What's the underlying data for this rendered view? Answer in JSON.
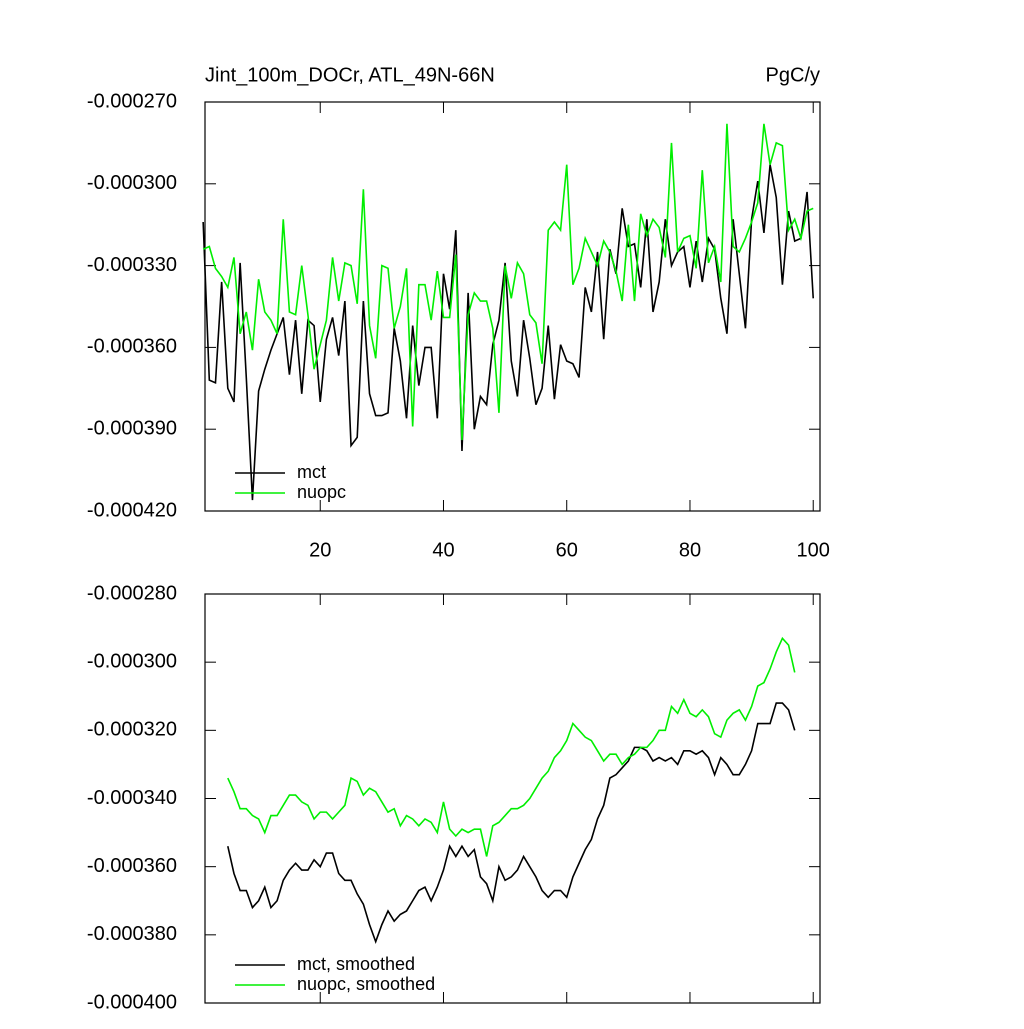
{
  "chart_data": [
    {
      "type": "line",
      "title": "Jint_100m_DOCr, ATL_49N-66N",
      "units": "PgC/y",
      "x": [
        1,
        2,
        3,
        4,
        5,
        6,
        7,
        8,
        9,
        10,
        11,
        12,
        13,
        14,
        15,
        16,
        17,
        18,
        19,
        20,
        21,
        22,
        23,
        24,
        25,
        26,
        27,
        28,
        29,
        30,
        31,
        32,
        33,
        34,
        35,
        36,
        37,
        38,
        39,
        40,
        41,
        42,
        43,
        44,
        45,
        46,
        47,
        48,
        49,
        50,
        51,
        52,
        53,
        54,
        55,
        56,
        57,
        58,
        59,
        60,
        61,
        62,
        63,
        64,
        65,
        66,
        67,
        68,
        69,
        70,
        71,
        72,
        73,
        74,
        75,
        76,
        77,
        78,
        79,
        80,
        81,
        82,
        83,
        84,
        85,
        86,
        87,
        88,
        89,
        90,
        91,
        92,
        93,
        94,
        95,
        96,
        97,
        98,
        99,
        100
      ],
      "xlim": [
        1.3,
        101.1
      ],
      "xticks": [
        20,
        40,
        60,
        80,
        100
      ],
      "ylim": [
        -0.00042,
        -0.00027
      ],
      "yticks": [
        {
          "value": -0.00042,
          "label": "-0.000420"
        },
        {
          "value": -0.00039,
          "label": "-0.000390"
        },
        {
          "value": -0.00036,
          "label": "-0.000360"
        },
        {
          "value": -0.00033,
          "label": "-0.000330"
        },
        {
          "value": -0.0003,
          "label": "-0.000300"
        },
        {
          "value": -0.00027,
          "label": "-0.000270"
        }
      ],
      "legend": "lower left",
      "series": [
        {
          "name": "mct",
          "color": "#000000",
          "values": [
            -0.000314,
            -0.000372,
            -0.000373,
            -0.000336,
            -0.000375,
            -0.00038,
            -0.000329,
            -0.000371,
            -0.000416,
            -0.000376,
            -0.000368,
            -0.000361,
            -0.000355,
            -0.000349,
            -0.00037,
            -0.00035,
            -0.000377,
            -0.00035,
            -0.000352,
            -0.00038,
            -0.000357,
            -0.000349,
            -0.000363,
            -0.000343,
            -0.000396,
            -0.000393,
            -0.000343,
            -0.000377,
            -0.000385,
            -0.000385,
            -0.000384,
            -0.000353,
            -0.000365,
            -0.000386,
            -0.000352,
            -0.000374,
            -0.00036,
            -0.00036,
            -0.000386,
            -0.000333,
            -0.000346,
            -0.000317,
            -0.000398,
            -0.00034,
            -0.00039,
            -0.000378,
            -0.000381,
            -0.000359,
            -0.00035,
            -0.000329,
            -0.000365,
            -0.000378,
            -0.00035,
            -0.000364,
            -0.000381,
            -0.000375,
            -0.000352,
            -0.000379,
            -0.000359,
            -0.000365,
            -0.000366,
            -0.000371,
            -0.000338,
            -0.000347,
            -0.000325,
            -0.000357,
            -0.000324,
            -0.000333,
            -0.000309,
            -0.000323,
            -0.000322,
            -0.000338,
            -0.000313,
            -0.000347,
            -0.000336,
            -0.000313,
            -0.00033,
            -0.000325,
            -0.000323,
            -0.000338,
            -0.000321,
            -0.000336,
            -0.00032,
            -0.000324,
            -0.000342,
            -0.000355,
            -0.000313,
            -0.000333,
            -0.000353,
            -0.000313,
            -0.000299,
            -0.000318,
            -0.000293,
            -0.000305,
            -0.000337,
            -0.00031,
            -0.000321,
            -0.00032,
            -0.000303,
            -0.000342
          ]
        },
        {
          "name": "nuopc",
          "color": "#00ee00",
          "values": [
            -0.000324,
            -0.000323,
            -0.000331,
            -0.000334,
            -0.000338,
            -0.000327,
            -0.000355,
            -0.000347,
            -0.000361,
            -0.000335,
            -0.000347,
            -0.00035,
            -0.000355,
            -0.000313,
            -0.000347,
            -0.000348,
            -0.00033,
            -0.000348,
            -0.000368,
            -0.000359,
            -0.00035,
            -0.000327,
            -0.000343,
            -0.000329,
            -0.00033,
            -0.000344,
            -0.000302,
            -0.000352,
            -0.000364,
            -0.00033,
            -0.000331,
            -0.000353,
            -0.000345,
            -0.000331,
            -0.000389,
            -0.000337,
            -0.000337,
            -0.00035,
            -0.000332,
            -0.000349,
            -0.000349,
            -0.000326,
            -0.000394,
            -0.000348,
            -0.00034,
            -0.000343,
            -0.000343,
            -0.000353,
            -0.000384,
            -0.00033,
            -0.000342,
            -0.000329,
            -0.000333,
            -0.000348,
            -0.000351,
            -0.000366,
            -0.000317,
            -0.000314,
            -0.000317,
            -0.000293,
            -0.000337,
            -0.000331,
            -0.00032,
            -0.000325,
            -0.00033,
            -0.000321,
            -0.000325,
            -0.000332,
            -0.000343,
            -0.000315,
            -0.000343,
            -0.000311,
            -0.000319,
            -0.000313,
            -0.000316,
            -0.000327,
            -0.000285,
            -0.000325,
            -0.00032,
            -0.000319,
            -0.000331,
            -0.000295,
            -0.000329,
            -0.000323,
            -0.000336,
            -0.000278,
            -0.000323,
            -0.000325,
            -0.00032,
            -0.000314,
            -0.000307,
            -0.000278,
            -0.000293,
            -0.000285,
            -0.000286,
            -0.000317,
            -0.000313,
            -0.00032,
            -0.00031,
            -0.000309
          ]
        }
      ]
    },
    {
      "type": "line",
      "x": [
        5,
        6,
        7,
        8,
        9,
        10,
        11,
        12,
        13,
        14,
        15,
        16,
        17,
        18,
        19,
        20,
        21,
        22,
        23,
        24,
        25,
        26,
        27,
        28,
        29,
        30,
        31,
        32,
        33,
        34,
        35,
        36,
        37,
        38,
        39,
        40,
        41,
        42,
        43,
        44,
        45,
        46,
        47,
        48,
        49,
        50,
        51,
        52,
        53,
        54,
        55,
        56,
        57,
        58,
        59,
        60,
        61,
        62,
        63,
        64,
        65,
        66,
        67,
        68,
        69,
        70,
        71,
        72,
        73,
        74,
        75,
        76,
        77,
        78,
        79,
        80,
        81,
        82,
        83,
        84,
        85,
        86,
        87,
        88,
        89,
        90,
        91,
        92,
        93,
        94,
        95,
        96,
        97
      ],
      "xlim": [
        1.3,
        101.1
      ],
      "xticks": [
        20,
        40,
        60,
        80,
        100
      ],
      "ylim": [
        -0.0004,
        -0.00028
      ],
      "yticks": [
        {
          "value": -0.0004,
          "label": "-0.000400"
        },
        {
          "value": -0.00038,
          "label": "-0.000380"
        },
        {
          "value": -0.00036,
          "label": "-0.000360"
        },
        {
          "value": -0.00034,
          "label": "-0.000340"
        },
        {
          "value": -0.00032,
          "label": "-0.000320"
        },
        {
          "value": -0.0003,
          "label": "-0.000300"
        },
        {
          "value": -0.00028,
          "label": "-0.000280"
        }
      ],
      "legend": "lower left",
      "series": [
        {
          "name": "mct, smoothed",
          "color": "#000000",
          "values": [
            -0.000354,
            -0.000362,
            -0.000367,
            -0.000367,
            -0.000372,
            -0.00037,
            -0.000366,
            -0.000372,
            -0.00037,
            -0.000364,
            -0.000361,
            -0.000359,
            -0.000361,
            -0.000361,
            -0.000358,
            -0.00036,
            -0.000356,
            -0.000356,
            -0.000362,
            -0.000364,
            -0.000364,
            -0.000368,
            -0.000371,
            -0.000377,
            -0.000382,
            -0.000377,
            -0.000373,
            -0.000376,
            -0.000374,
            -0.000373,
            -0.00037,
            -0.000367,
            -0.000366,
            -0.00037,
            -0.000366,
            -0.000361,
            -0.000354,
            -0.000357,
            -0.000354,
            -0.000357,
            -0.000355,
            -0.000363,
            -0.000365,
            -0.00037,
            -0.00036,
            -0.000364,
            -0.000363,
            -0.000361,
            -0.000357,
            -0.00036,
            -0.000363,
            -0.000367,
            -0.000369,
            -0.000367,
            -0.000367,
            -0.000369,
            -0.000363,
            -0.000359,
            -0.000355,
            -0.000352,
            -0.000346,
            -0.000342,
            -0.000334,
            -0.000333,
            -0.000331,
            -0.000329,
            -0.000325,
            -0.000325,
            -0.000326,
            -0.000329,
            -0.000328,
            -0.000329,
            -0.000328,
            -0.00033,
            -0.000326,
            -0.000326,
            -0.000327,
            -0.000326,
            -0.000328,
            -0.000333,
            -0.000328,
            -0.00033,
            -0.000333,
            -0.000333,
            -0.00033,
            -0.000326,
            -0.000318,
            -0.000318,
            -0.000318,
            -0.000312,
            -0.000312,
            -0.000314,
            -0.00032
          ]
        },
        {
          "name": "nuopc, smoothed",
          "color": "#00ee00",
          "values": [
            -0.000334,
            -0.000338,
            -0.000343,
            -0.000343,
            -0.000345,
            -0.000346,
            -0.00035,
            -0.000345,
            -0.000345,
            -0.000342,
            -0.000339,
            -0.000339,
            -0.000341,
            -0.000342,
            -0.000346,
            -0.000344,
            -0.000344,
            -0.000346,
            -0.000344,
            -0.000342,
            -0.000334,
            -0.000335,
            -0.000339,
            -0.000337,
            -0.000338,
            -0.000341,
            -0.000344,
            -0.000343,
            -0.000348,
            -0.000345,
            -0.000346,
            -0.000348,
            -0.000346,
            -0.000347,
            -0.00035,
            -0.000341,
            -0.000349,
            -0.000351,
            -0.000349,
            -0.00035,
            -0.000349,
            -0.000349,
            -0.000357,
            -0.000348,
            -0.000347,
            -0.000345,
            -0.000343,
            -0.000343,
            -0.000342,
            -0.00034,
            -0.000337,
            -0.000334,
            -0.000332,
            -0.000328,
            -0.000326,
            -0.000323,
            -0.000318,
            -0.00032,
            -0.000322,
            -0.000323,
            -0.000326,
            -0.000329,
            -0.000327,
            -0.000327,
            -0.00033,
            -0.000328,
            -0.000327,
            -0.000325,
            -0.000325,
            -0.000323,
            -0.00032,
            -0.00032,
            -0.000313,
            -0.000315,
            -0.000311,
            -0.000315,
            -0.000316,
            -0.000314,
            -0.000316,
            -0.000321,
            -0.000322,
            -0.000317,
            -0.000315,
            -0.000314,
            -0.000317,
            -0.000313,
            -0.000307,
            -0.000306,
            -0.000302,
            -0.000297,
            -0.000293,
            -0.000295,
            -0.000303
          ]
        }
      ]
    }
  ]
}
